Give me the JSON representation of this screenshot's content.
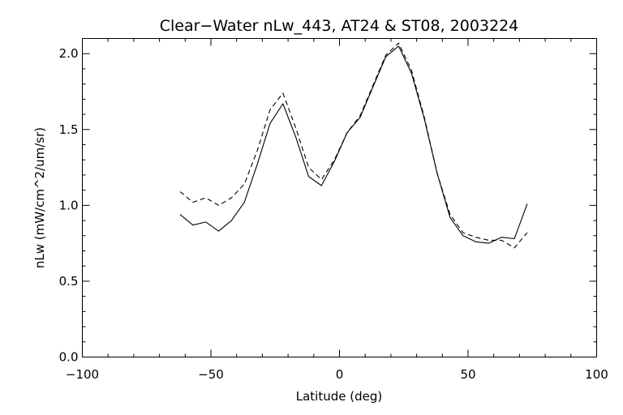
{
  "chart_data": {
    "type": "line",
    "title": "Clear−Water nLw_443, AT24 & ST08, 2003224",
    "xlabel": "Latitude (deg)",
    "ylabel": "nLw (mW/cm^2/um/sr)",
    "xlim": [
      -100,
      100
    ],
    "ylim": [
      0.0,
      2.1
    ],
    "x_ticks": [
      -100,
      -50,
      0,
      50,
      100
    ],
    "x_tick_labels": [
      "−100",
      "−50",
      "0",
      "50",
      "100"
    ],
    "y_ticks": [
      0.0,
      0.5,
      1.0,
      1.5,
      2.0
    ],
    "y_tick_labels": [
      "0.0",
      "0.5",
      "1.0",
      "1.5",
      "2.0"
    ],
    "grid": false,
    "series": [
      {
        "line_style": "solid",
        "color": "#000000",
        "x": [
          -62,
          -57,
          -52,
          -47,
          -42,
          -37,
          -32,
          -27,
          -22,
          -17,
          -12,
          -7,
          -2,
          3,
          8,
          13,
          18,
          23,
          28,
          33,
          38,
          43,
          48,
          53,
          58,
          63,
          68,
          73
        ],
        "y": [
          0.94,
          0.87,
          0.89,
          0.83,
          0.9,
          1.02,
          1.27,
          1.54,
          1.67,
          1.45,
          1.19,
          1.13,
          1.29,
          1.48,
          1.58,
          1.78,
          1.98,
          2.05,
          1.87,
          1.57,
          1.21,
          0.92,
          0.8,
          0.76,
          0.75,
          0.79,
          0.78,
          1.01
        ]
      },
      {
        "line_style": "dashed",
        "color": "#000000",
        "x": [
          -62,
          -57,
          -52,
          -47,
          -42,
          -37,
          -32,
          -27,
          -22,
          -17,
          -12,
          -7,
          -2,
          3,
          8,
          13,
          18,
          23,
          28,
          33,
          38,
          43,
          48,
          53,
          58,
          63,
          68,
          73
        ],
        "y": [
          1.09,
          1.02,
          1.05,
          1.0,
          1.05,
          1.14,
          1.36,
          1.63,
          1.74,
          1.51,
          1.25,
          1.17,
          1.3,
          1.48,
          1.59,
          1.79,
          1.99,
          2.07,
          1.89,
          1.58,
          1.21,
          0.94,
          0.82,
          0.79,
          0.77,
          0.77,
          0.72,
          0.82
        ]
      }
    ]
  }
}
